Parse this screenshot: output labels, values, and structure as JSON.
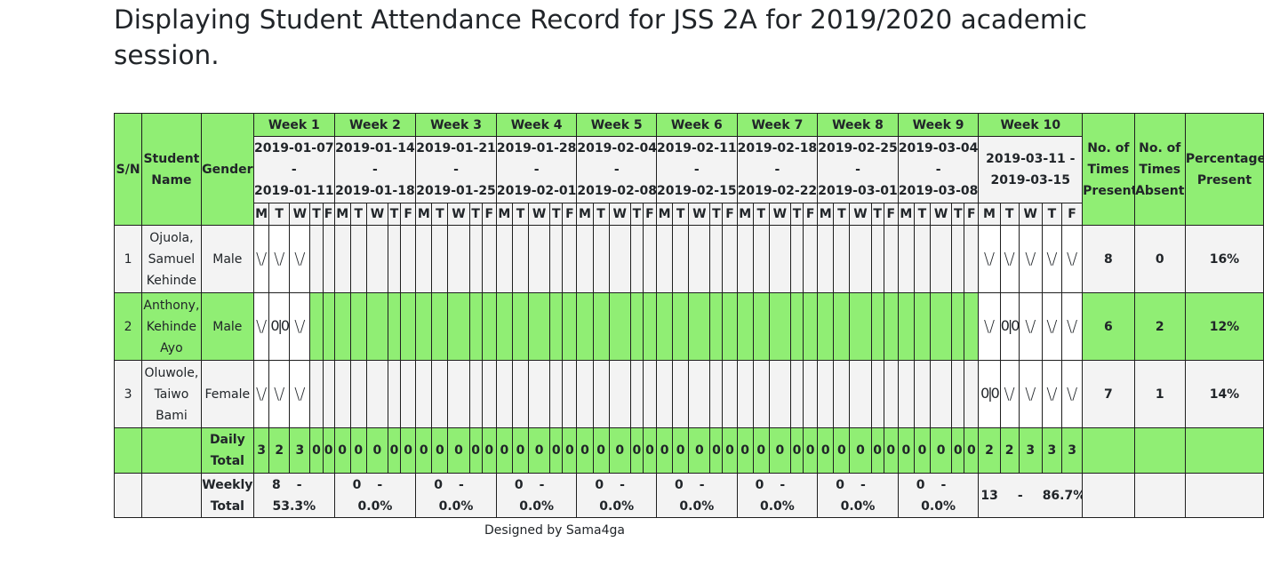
{
  "page": {
    "title": "Displaying Student Attendance Record for JSS 2A for 2019/2020 academic session.",
    "footer": "Designed by Sama4ga"
  },
  "table": {
    "headers": {
      "sn": "S/N",
      "student_name": "Student Name",
      "gender": "Gender",
      "present": "No. of Times Present",
      "absent": "No. of Times Absent",
      "percentage": "Percentage Present"
    },
    "weeks": [
      {
        "label": "Week 1",
        "start": "2019-01-07",
        "end": "2019-01-11"
      },
      {
        "label": "Week 2",
        "start": "2019-01-14",
        "end": "2019-01-18"
      },
      {
        "label": "Week 3",
        "start": "2019-01-21",
        "end": "2019-01-25"
      },
      {
        "label": "Week 4",
        "start": "2019-01-28",
        "end": "2019-02-01"
      },
      {
        "label": "Week 5",
        "start": "2019-02-04",
        "end": "2019-02-08"
      },
      {
        "label": "Week 6",
        "start": "2019-02-11",
        "end": "2019-02-15"
      },
      {
        "label": "Week 7",
        "start": "2019-02-18",
        "end": "2019-02-22"
      },
      {
        "label": "Week 8",
        "start": "2019-02-25",
        "end": "2019-03-01"
      },
      {
        "label": "Week 9",
        "start": "2019-03-04",
        "end": "2019-03-08"
      },
      {
        "label": "Week 10",
        "start": "2019-03-11",
        "end": "2019-03-15"
      }
    ],
    "date_separator": "-",
    "days": [
      "M",
      "T",
      "W",
      "T",
      "F"
    ],
    "present_symbol": "\\/",
    "absent_symbol": "0|0",
    "students": [
      {
        "sn": "1",
        "name": "Ojuola, Samuel Kehinde",
        "gender": "Male",
        "marks": [
          "P",
          "P",
          "P",
          "",
          "",
          "",
          "",
          "",
          "",
          "",
          "",
          "",
          "",
          "",
          "",
          "",
          "",
          "",
          "",
          "",
          "",
          "",
          "",
          "",
          "",
          "",
          "",
          "",
          "",
          "",
          "",
          "",
          "",
          "",
          "",
          "",
          "",
          "",
          "",
          "",
          "",
          "",
          "",
          "",
          "",
          "P",
          "P",
          "P",
          "P",
          "P"
        ],
        "present": "8",
        "absent": "0",
        "percentage": "16%"
      },
      {
        "sn": "2",
        "name": "Anthony, Kehinde Ayo",
        "gender": "Male",
        "marks": [
          "P",
          "A",
          "P",
          "",
          "",
          "",
          "",
          "",
          "",
          "",
          "",
          "",
          "",
          "",
          "",
          "",
          "",
          "",
          "",
          "",
          "",
          "",
          "",
          "",
          "",
          "",
          "",
          "",
          "",
          "",
          "",
          "",
          "",
          "",
          "",
          "",
          "",
          "",
          "",
          "",
          "",
          "",
          "",
          "",
          "",
          "P",
          "A",
          "P",
          "P",
          "P"
        ],
        "present": "6",
        "absent": "2",
        "percentage": "12%"
      },
      {
        "sn": "3",
        "name": "Oluwole, Taiwo Bami",
        "gender": "Female",
        "marks": [
          "P",
          "P",
          "P",
          "",
          "",
          "",
          "",
          "",
          "",
          "",
          "",
          "",
          "",
          "",
          "",
          "",
          "",
          "",
          "",
          "",
          "",
          "",
          "",
          "",
          "",
          "",
          "",
          "",
          "",
          "",
          "",
          "",
          "",
          "",
          "",
          "",
          "",
          "",
          "",
          "",
          "",
          "",
          "",
          "",
          "",
          "A",
          "P",
          "P",
          "P",
          "P"
        ],
        "present": "7",
        "absent": "1",
        "percentage": "14%"
      }
    ],
    "daily_total": {
      "label": "Daily Total",
      "values": [
        "3",
        "2",
        "3",
        "0",
        "0",
        "0",
        "0",
        "0",
        "0",
        "0",
        "0",
        "0",
        "0",
        "0",
        "0",
        "0",
        "0",
        "0",
        "0",
        "0",
        "0",
        "0",
        "0",
        "0",
        "0",
        "0",
        "0",
        "0",
        "0",
        "0",
        "0",
        "0",
        "0",
        "0",
        "0",
        "0",
        "0",
        "0",
        "0",
        "0",
        "0",
        "0",
        "0",
        "0",
        "0",
        "2",
        "2",
        "3",
        "3",
        "3"
      ]
    },
    "weekly_total": {
      "label": "Weekly Total",
      "values": [
        {
          "count": "8",
          "sep": "-",
          "pct": "53.3%"
        },
        {
          "count": "0",
          "sep": "-",
          "pct": "0.0%"
        },
        {
          "count": "0",
          "sep": "-",
          "pct": "0.0%"
        },
        {
          "count": "0",
          "sep": "-",
          "pct": "0.0%"
        },
        {
          "count": "0",
          "sep": "-",
          "pct": "0.0%"
        },
        {
          "count": "0",
          "sep": "-",
          "pct": "0.0%"
        },
        {
          "count": "0",
          "sep": "-",
          "pct": "0.0%"
        },
        {
          "count": "0",
          "sep": "-",
          "pct": "0.0%"
        },
        {
          "count": "0",
          "sep": "-",
          "pct": "0.0%"
        },
        {
          "count": "13",
          "sep": "-",
          "pct": "86.7%"
        }
      ]
    },
    "colors": {
      "green": "#90ee74",
      "light": "#f3f3f3",
      "border": "#1f1f1f"
    }
  }
}
